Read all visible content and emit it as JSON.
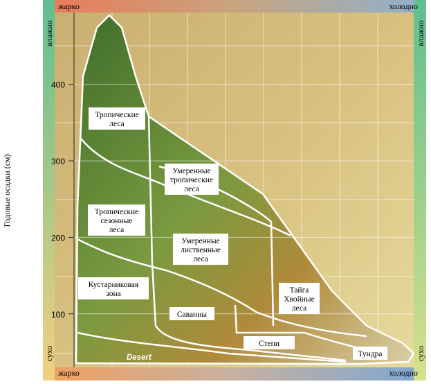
{
  "y_axis": {
    "label": "Годовые осадки (см)",
    "ylim": [
      30,
      494
    ],
    "ticks": [
      100,
      200,
      300,
      400
    ]
  },
  "corners": {
    "top_left": "жарко",
    "top_right": "холодно",
    "bottom_left": "жарко",
    "bottom_right": "холодно",
    "left_top": "влажно",
    "left_bottom": "сухо",
    "right_top": "влажно",
    "right_bottom": "сухо"
  },
  "biomes": [
    {
      "lines": [
        "Тропические",
        "леса"
      ]
    },
    {
      "lines": [
        "Умеренные",
        "тропические",
        "леса"
      ]
    },
    {
      "lines": [
        "Тропические",
        "сезонные",
        "леса"
      ]
    },
    {
      "lines": [
        "Умеренные",
        "лиственные",
        "леса"
      ]
    },
    {
      "lines": [
        "Кустарниковая",
        "зона"
      ]
    },
    {
      "lines": [
        "Саванны"
      ]
    },
    {
      "lines": [
        "Тайга",
        "Хвойные",
        "леса"
      ]
    },
    {
      "lines": [
        "Степи"
      ]
    },
    {
      "lines": [
        "Тундра"
      ]
    },
    {
      "lines": [
        "Desert"
      ]
    }
  ]
}
